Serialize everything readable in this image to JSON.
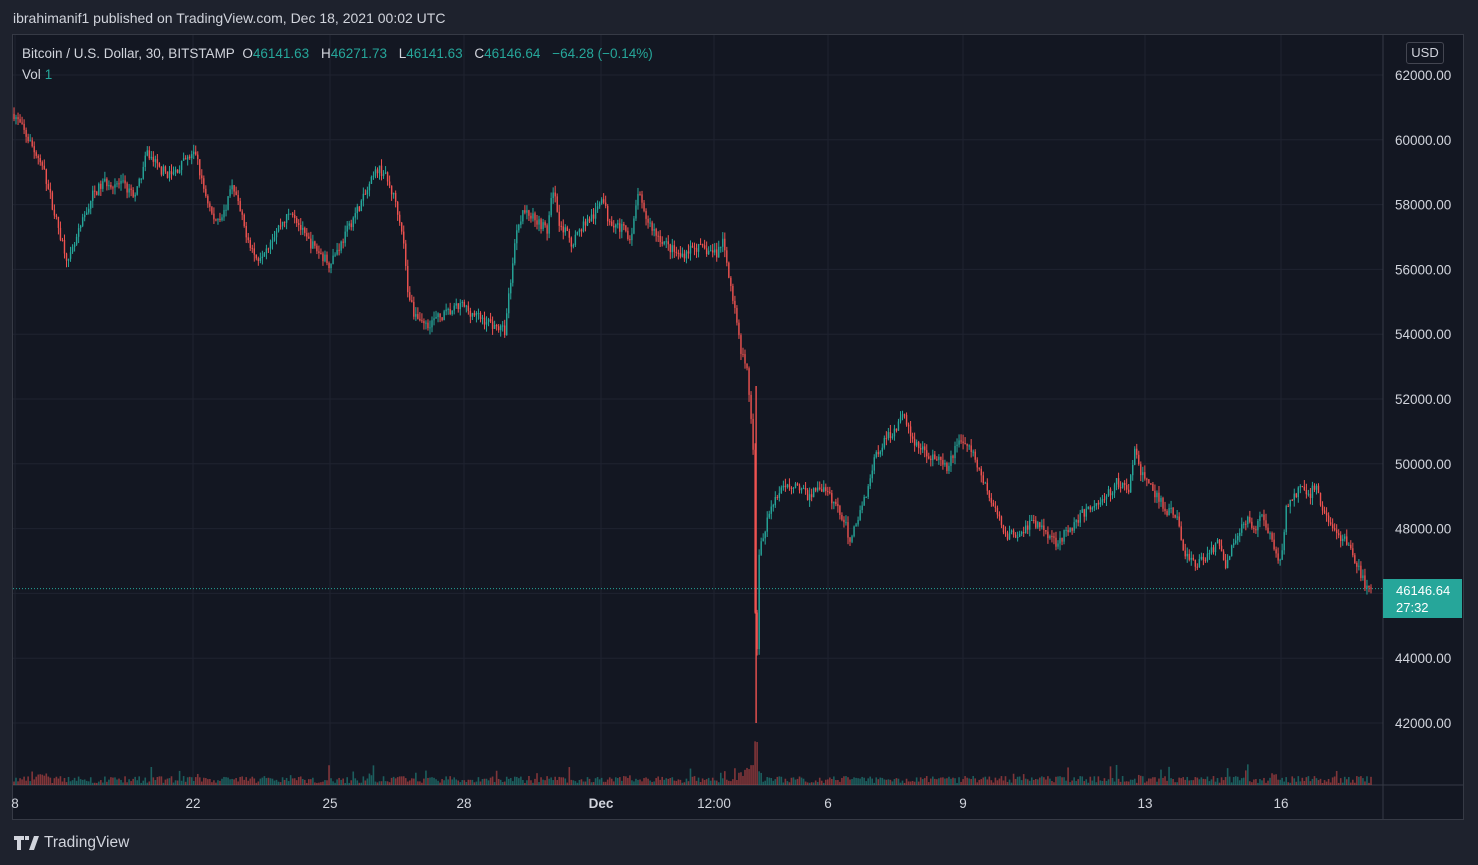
{
  "header": {
    "published": "ibrahimanif1 published on TradingView.com, Dec 18, 2021 00:02 UTC"
  },
  "legend": {
    "symbol": "Bitcoin / U.S. Dollar, 30, BITSTAMP",
    "o_label": "O",
    "o_value": "46141.63",
    "h_label": "H",
    "h_value": "46271.73",
    "l_label": "L",
    "l_value": "46141.63",
    "c_label": "C",
    "c_value": "46146.64",
    "change": "−64.28 (−0.14%)",
    "vol_label": "Vol",
    "vol_value": "1"
  },
  "currency_button": "USD",
  "last_price": {
    "price": "46146.64",
    "countdown": "27:32"
  },
  "brand": "TradingView",
  "colors": {
    "up": "#26a69a",
    "down": "#ef5350",
    "background": "#131722",
    "grid": "#1f2330"
  },
  "chart_data": {
    "type": "candlestick",
    "y_ticks": [
      42000,
      44000,
      46000,
      48000,
      50000,
      52000,
      54000,
      56000,
      58000,
      60000,
      62000
    ],
    "y_tick_labels": [
      "42000.00",
      "44000.00",
      "46000.00",
      "48000.00",
      "50000.00",
      "52000.00",
      "54000.00",
      "56000.00",
      "58000.00",
      "60000.00",
      "62000.00"
    ],
    "ylim": [
      40000,
      63300
    ],
    "x_ticks": [
      {
        "label": "8",
        "bold": false
      },
      {
        "label": "22",
        "bold": false
      },
      {
        "label": "25",
        "bold": false
      },
      {
        "label": "28",
        "bold": false
      },
      {
        "label": "Dec",
        "bold": true
      },
      {
        "label": "12:00",
        "bold": false
      },
      {
        "label": "6",
        "bold": false
      },
      {
        "label": "9",
        "bold": false
      },
      {
        "label": "13",
        "bold": false
      },
      {
        "label": "16",
        "bold": false
      }
    ],
    "last_close": 46146.64,
    "price_path": [
      [
        0,
        60800
      ],
      [
        3,
        59800
      ],
      [
        5,
        59000
      ],
      [
        7,
        57500
      ],
      [
        9,
        56200
      ],
      [
        11,
        57300
      ],
      [
        13,
        58300
      ],
      [
        15,
        58700
      ],
      [
        18,
        58600
      ],
      [
        20,
        58200
      ],
      [
        22,
        59600
      ],
      [
        24,
        59100
      ],
      [
        26,
        58900
      ],
      [
        28,
        59300
      ],
      [
        30,
        59600
      ],
      [
        31,
        58700
      ],
      [
        33,
        57500
      ],
      [
        35,
        57800
      ],
      [
        36,
        58700
      ],
      [
        38,
        57300
      ],
      [
        40,
        56300
      ],
      [
        42,
        56800
      ],
      [
        44,
        57400
      ],
      [
        46,
        57800
      ],
      [
        48,
        57000
      ],
      [
        50,
        56600
      ],
      [
        52,
        56200
      ],
      [
        54,
        56800
      ],
      [
        56,
        57600
      ],
      [
        58,
        58300
      ],
      [
        60,
        59100
      ],
      [
        61,
        59000
      ],
      [
        63,
        58100
      ],
      [
        64,
        57300
      ],
      [
        65,
        55400
      ],
      [
        66,
        54700
      ],
      [
        68,
        54300
      ],
      [
        70,
        54500
      ],
      [
        72,
        54700
      ],
      [
        74,
        54900
      ],
      [
        76,
        54600
      ],
      [
        78,
        54400
      ],
      [
        80,
        54200
      ],
      [
        81,
        54100
      ],
      [
        82,
        55700
      ],
      [
        83,
        57300
      ],
      [
        84,
        57800
      ],
      [
        86,
        57600
      ],
      [
        88,
        57200
      ],
      [
        89,
        58500
      ],
      [
        90,
        57500
      ],
      [
        92,
        56800
      ],
      [
        94,
        57400
      ],
      [
        96,
        57700
      ],
      [
        97,
        58300
      ],
      [
        98,
        57600
      ],
      [
        100,
        57300
      ],
      [
        102,
        57000
      ],
      [
        103,
        58400
      ],
      [
        104,
        57700
      ],
      [
        106,
        57100
      ],
      [
        108,
        56700
      ],
      [
        110,
        56400
      ],
      [
        112,
        56700
      ],
      [
        114,
        56600
      ],
      [
        116,
        56500
      ],
      [
        117,
        56900
      ],
      [
        118,
        55900
      ],
      [
        119,
        54700
      ],
      [
        120,
        53400
      ],
      [
        121,
        52900
      ],
      [
        122,
        50500
      ],
      [
        122.5,
        43000
      ],
      [
        123,
        47300
      ],
      [
        124,
        47900
      ],
      [
        125,
        48800
      ],
      [
        127,
        49200
      ],
      [
        129,
        49400
      ],
      [
        131,
        49000
      ],
      [
        133,
        49300
      ],
      [
        135,
        48900
      ],
      [
        137,
        48300
      ],
      [
        138,
        47600
      ],
      [
        139,
        48200
      ],
      [
        140,
        48700
      ],
      [
        141,
        49300
      ],
      [
        142,
        50200
      ],
      [
        144,
        50800
      ],
      [
        146,
        51200
      ],
      [
        147,
        51600
      ],
      [
        148,
        50800
      ],
      [
        150,
        50400
      ],
      [
        152,
        50200
      ],
      [
        154,
        49800
      ],
      [
        156,
        50800
      ],
      [
        158,
        50400
      ],
      [
        160,
        49500
      ],
      [
        162,
        48500
      ],
      [
        164,
        47800
      ],
      [
        166,
        47900
      ],
      [
        168,
        48200
      ],
      [
        170,
        48000
      ],
      [
        172,
        47600
      ],
      [
        174,
        47900
      ],
      [
        176,
        48400
      ],
      [
        178,
        48700
      ],
      [
        180,
        48900
      ],
      [
        182,
        49400
      ],
      [
        184,
        49200
      ],
      [
        185,
        50400
      ],
      [
        186,
        49800
      ],
      [
        188,
        49200
      ],
      [
        190,
        48600
      ],
      [
        192,
        48400
      ],
      [
        193,
        47300
      ],
      [
        195,
        46900
      ],
      [
        197,
        47200
      ],
      [
        199,
        47600
      ],
      [
        200,
        46900
      ],
      [
        202,
        47800
      ],
      [
        203,
        48300
      ],
      [
        205,
        48100
      ],
      [
        206,
        48400
      ],
      [
        208,
        47500
      ],
      [
        209,
        46900
      ],
      [
        210,
        48600
      ],
      [
        212,
        49200
      ],
      [
        214,
        49100
      ],
      [
        215,
        49300
      ],
      [
        216,
        48600
      ],
      [
        218,
        47900
      ],
      [
        220,
        47600
      ],
      [
        222,
        46700
      ],
      [
        223,
        46300
      ],
      [
        224,
        46146
      ]
    ],
    "volume_spikes": [
      [
        4,
        7
      ],
      [
        5,
        9
      ],
      [
        20,
        3
      ],
      [
        35,
        4
      ],
      [
        64,
        6
      ],
      [
        120,
        9
      ],
      [
        121,
        14
      ],
      [
        122,
        17
      ],
      [
        122.5,
        40
      ],
      [
        123,
        10
      ],
      [
        138,
        5
      ],
      [
        186,
        6
      ],
      [
        208,
        8
      ],
      [
        222,
        5
      ]
    ]
  }
}
